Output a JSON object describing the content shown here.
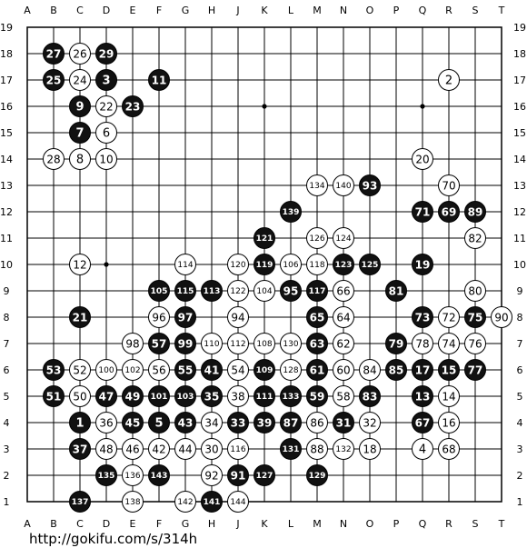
{
  "url": "http://gokifu.com/s/314h",
  "board": {
    "size": 19,
    "columns": [
      "A",
      "B",
      "C",
      "D",
      "E",
      "F",
      "G",
      "H",
      "J",
      "K",
      "L",
      "M",
      "N",
      "O",
      "P",
      "Q",
      "R",
      "S",
      "T"
    ],
    "rows": [
      "19",
      "18",
      "17",
      "16",
      "15",
      "14",
      "13",
      "12",
      "11",
      "10",
      "9",
      "8",
      "7",
      "6",
      "5",
      "4",
      "3",
      "2",
      "1"
    ],
    "star_points": [
      "D16",
      "K16",
      "Q16",
      "D10",
      "K10",
      "Q10",
      "D4",
      "K4",
      "Q4"
    ],
    "stones": [
      {
        "c": "B",
        "p": "B18",
        "n": "27"
      },
      {
        "c": "W",
        "p": "C18",
        "n": "26"
      },
      {
        "c": "B",
        "p": "D18",
        "n": "29"
      },
      {
        "c": "B",
        "p": "B17",
        "n": "25"
      },
      {
        "c": "W",
        "p": "C17",
        "n": "24"
      },
      {
        "c": "B",
        "p": "D17",
        "n": "3"
      },
      {
        "c": "B",
        "p": "F17",
        "n": "11"
      },
      {
        "c": "W",
        "p": "R17",
        "n": "2"
      },
      {
        "c": "B",
        "p": "C16",
        "n": "9"
      },
      {
        "c": "W",
        "p": "D16",
        "n": "22"
      },
      {
        "c": "B",
        "p": "E16",
        "n": "23"
      },
      {
        "c": "B",
        "p": "C15",
        "n": "7"
      },
      {
        "c": "W",
        "p": "D15",
        "n": "6"
      },
      {
        "c": "W",
        "p": "B14",
        "n": "28"
      },
      {
        "c": "W",
        "p": "C14",
        "n": "8"
      },
      {
        "c": "W",
        "p": "D14",
        "n": "10"
      },
      {
        "c": "W",
        "p": "Q14",
        "n": "20"
      },
      {
        "c": "W",
        "p": "M13",
        "n": "134"
      },
      {
        "c": "W",
        "p": "N13",
        "n": "140"
      },
      {
        "c": "B",
        "p": "O13",
        "n": "93"
      },
      {
        "c": "W",
        "p": "R13",
        "n": "70"
      },
      {
        "c": "B",
        "p": "L12",
        "n": "139"
      },
      {
        "c": "B",
        "p": "Q12",
        "n": "71"
      },
      {
        "c": "B",
        "p": "R12",
        "n": "69"
      },
      {
        "c": "B",
        "p": "S12",
        "n": "89"
      },
      {
        "c": "B",
        "p": "K11",
        "n": "121"
      },
      {
        "c": "W",
        "p": "M11",
        "n": "126"
      },
      {
        "c": "W",
        "p": "N11",
        "n": "124"
      },
      {
        "c": "W",
        "p": "S11",
        "n": "82"
      },
      {
        "c": "W",
        "p": "C10",
        "n": "12"
      },
      {
        "c": "W",
        "p": "G10",
        "n": "114"
      },
      {
        "c": "W",
        "p": "J10",
        "n": "120"
      },
      {
        "c": "B",
        "p": "K10",
        "n": "119"
      },
      {
        "c": "W",
        "p": "L10",
        "n": "106"
      },
      {
        "c": "W",
        "p": "M10",
        "n": "118"
      },
      {
        "c": "B",
        "p": "N10",
        "n": "123"
      },
      {
        "c": "B",
        "p": "O10",
        "n": "125"
      },
      {
        "c": "B",
        "p": "Q10",
        "n": "19"
      },
      {
        "c": "B",
        "p": "F9",
        "n": "105"
      },
      {
        "c": "B",
        "p": "G9",
        "n": "115"
      },
      {
        "c": "B",
        "p": "H9",
        "n": "113"
      },
      {
        "c": "W",
        "p": "J9",
        "n": "122"
      },
      {
        "c": "W",
        "p": "K9",
        "n": "104"
      },
      {
        "c": "B",
        "p": "L9",
        "n": "95"
      },
      {
        "c": "B",
        "p": "M9",
        "n": "117"
      },
      {
        "c": "W",
        "p": "N9",
        "n": "66"
      },
      {
        "c": "B",
        "p": "P9",
        "n": "81"
      },
      {
        "c": "W",
        "p": "S9",
        "n": "80"
      },
      {
        "c": "B",
        "p": "C8",
        "n": "21"
      },
      {
        "c": "W",
        "p": "F8",
        "n": "96"
      },
      {
        "c": "B",
        "p": "G8",
        "n": "97"
      },
      {
        "c": "W",
        "p": "J8",
        "n": "94"
      },
      {
        "c": "B",
        "p": "M8",
        "n": "65"
      },
      {
        "c": "W",
        "p": "N8",
        "n": "64"
      },
      {
        "c": "B",
        "p": "Q8",
        "n": "73"
      },
      {
        "c": "W",
        "p": "R8",
        "n": "72"
      },
      {
        "c": "B",
        "p": "S8",
        "n": "75"
      },
      {
        "c": "W",
        "p": "T8",
        "n": "90"
      },
      {
        "c": "W",
        "p": "E7",
        "n": "98"
      },
      {
        "c": "B",
        "p": "F7",
        "n": "57"
      },
      {
        "c": "B",
        "p": "G7",
        "n": "99"
      },
      {
        "c": "W",
        "p": "H7",
        "n": "110"
      },
      {
        "c": "W",
        "p": "J7",
        "n": "112"
      },
      {
        "c": "W",
        "p": "K7",
        "n": "108"
      },
      {
        "c": "W",
        "p": "L7",
        "n": "130"
      },
      {
        "c": "B",
        "p": "M7",
        "n": "63"
      },
      {
        "c": "W",
        "p": "N7",
        "n": "62"
      },
      {
        "c": "B",
        "p": "P7",
        "n": "79"
      },
      {
        "c": "W",
        "p": "Q7",
        "n": "78"
      },
      {
        "c": "W",
        "p": "R7",
        "n": "74"
      },
      {
        "c": "W",
        "p": "S7",
        "n": "76"
      },
      {
        "c": "B",
        "p": "B6",
        "n": "53"
      },
      {
        "c": "W",
        "p": "C6",
        "n": "52"
      },
      {
        "c": "W",
        "p": "D6",
        "n": "100"
      },
      {
        "c": "W",
        "p": "E6",
        "n": "102"
      },
      {
        "c": "W",
        "p": "F6",
        "n": "56"
      },
      {
        "c": "B",
        "p": "G6",
        "n": "55"
      },
      {
        "c": "B",
        "p": "H6",
        "n": "41"
      },
      {
        "c": "W",
        "p": "J6",
        "n": "54"
      },
      {
        "c": "B",
        "p": "K6",
        "n": "109"
      },
      {
        "c": "W",
        "p": "L6",
        "n": "128"
      },
      {
        "c": "B",
        "p": "M6",
        "n": "61"
      },
      {
        "c": "W",
        "p": "N6",
        "n": "60"
      },
      {
        "c": "W",
        "p": "O6",
        "n": "84"
      },
      {
        "c": "B",
        "p": "P6",
        "n": "85"
      },
      {
        "c": "B",
        "p": "Q6",
        "n": "17"
      },
      {
        "c": "B",
        "p": "R6",
        "n": "15"
      },
      {
        "c": "B",
        "p": "S6",
        "n": "77"
      },
      {
        "c": "B",
        "p": "B5",
        "n": "51"
      },
      {
        "c": "W",
        "p": "C5",
        "n": "50"
      },
      {
        "c": "B",
        "p": "D5",
        "n": "47"
      },
      {
        "c": "B",
        "p": "E5",
        "n": "49"
      },
      {
        "c": "B",
        "p": "F5",
        "n": "101"
      },
      {
        "c": "B",
        "p": "G5",
        "n": "103"
      },
      {
        "c": "B",
        "p": "H5",
        "n": "35"
      },
      {
        "c": "W",
        "p": "J5",
        "n": "38"
      },
      {
        "c": "B",
        "p": "K5",
        "n": "111"
      },
      {
        "c": "B",
        "p": "L5",
        "n": "133"
      },
      {
        "c": "B",
        "p": "M5",
        "n": "59"
      },
      {
        "c": "W",
        "p": "N5",
        "n": "58"
      },
      {
        "c": "B",
        "p": "O5",
        "n": "83"
      },
      {
        "c": "B",
        "p": "Q5",
        "n": "13"
      },
      {
        "c": "W",
        "p": "R5",
        "n": "14"
      },
      {
        "c": "B",
        "p": "C4",
        "n": "1"
      },
      {
        "c": "W",
        "p": "D4",
        "n": "36"
      },
      {
        "c": "B",
        "p": "E4",
        "n": "45"
      },
      {
        "c": "B",
        "p": "F4",
        "n": "5"
      },
      {
        "c": "B",
        "p": "G4",
        "n": "43"
      },
      {
        "c": "W",
        "p": "H4",
        "n": "34"
      },
      {
        "c": "B",
        "p": "J4",
        "n": "33"
      },
      {
        "c": "B",
        "p": "K4",
        "n": "39"
      },
      {
        "c": "B",
        "p": "L4",
        "n": "87"
      },
      {
        "c": "W",
        "p": "M4",
        "n": "86"
      },
      {
        "c": "B",
        "p": "N4",
        "n": "31"
      },
      {
        "c": "W",
        "p": "O4",
        "n": "32"
      },
      {
        "c": "B",
        "p": "Q4",
        "n": "67"
      },
      {
        "c": "W",
        "p": "R4",
        "n": "16"
      },
      {
        "c": "B",
        "p": "C3",
        "n": "37"
      },
      {
        "c": "W",
        "p": "D3",
        "n": "48"
      },
      {
        "c": "W",
        "p": "E3",
        "n": "46"
      },
      {
        "c": "W",
        "p": "F3",
        "n": "42"
      },
      {
        "c": "W",
        "p": "G3",
        "n": "44"
      },
      {
        "c": "W",
        "p": "H3",
        "n": "30"
      },
      {
        "c": "W",
        "p": "J3",
        "n": "116"
      },
      {
        "c": "B",
        "p": "L3",
        "n": "131"
      },
      {
        "c": "W",
        "p": "M3",
        "n": "88"
      },
      {
        "c": "W",
        "p": "N3",
        "n": "132"
      },
      {
        "c": "W",
        "p": "O3",
        "n": "18"
      },
      {
        "c": "W",
        "p": "Q3",
        "n": "4"
      },
      {
        "c": "W",
        "p": "R3",
        "n": "68"
      },
      {
        "c": "B",
        "p": "D2",
        "n": "135"
      },
      {
        "c": "W",
        "p": "E2",
        "n": "136"
      },
      {
        "c": "B",
        "p": "F2",
        "n": "143"
      },
      {
        "c": "W",
        "p": "H2",
        "n": "92"
      },
      {
        "c": "B",
        "p": "J2",
        "n": "91"
      },
      {
        "c": "B",
        "p": "K2",
        "n": "127"
      },
      {
        "c": "B",
        "p": "M2",
        "n": "129"
      },
      {
        "c": "B",
        "p": "C1",
        "n": "137"
      },
      {
        "c": "W",
        "p": "E1",
        "n": "138"
      },
      {
        "c": "W",
        "p": "G1",
        "n": "142"
      },
      {
        "c": "B",
        "p": "H1",
        "n": "141"
      },
      {
        "c": "W",
        "p": "J1",
        "n": "144"
      }
    ],
    "colors": {
      "board": "#ffffff",
      "line": "#000000",
      "black_stone": "#111111",
      "white_stone": "#ffffff",
      "black_text": "#ffffff",
      "white_text": "#000000"
    }
  }
}
